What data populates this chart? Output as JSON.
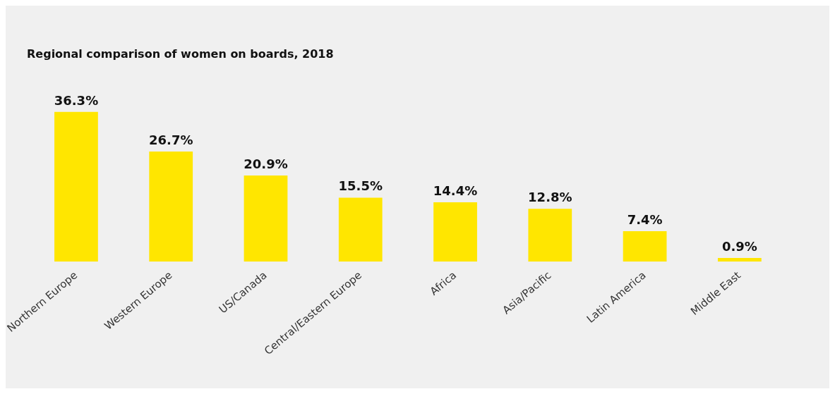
{
  "chart_data": {
    "type": "bar",
    "title": "Regional comparison of women on boards, 2018",
    "categories": [
      "Northern Europe",
      "Western Europe",
      "US/Canada",
      "Central/Eastern Europe",
      "Africa",
      "Asia/Pacific",
      "Latin America",
      "Middle East"
    ],
    "values": [
      36.3,
      26.7,
      20.9,
      15.5,
      14.4,
      12.8,
      7.4,
      0.9
    ],
    "value_labels": [
      "36.3%",
      "26.7%",
      "20.9%",
      "15.5%",
      "14.4%",
      "12.8%",
      "7.4%",
      "0.9%"
    ],
    "color": "#ffe600"
  }
}
